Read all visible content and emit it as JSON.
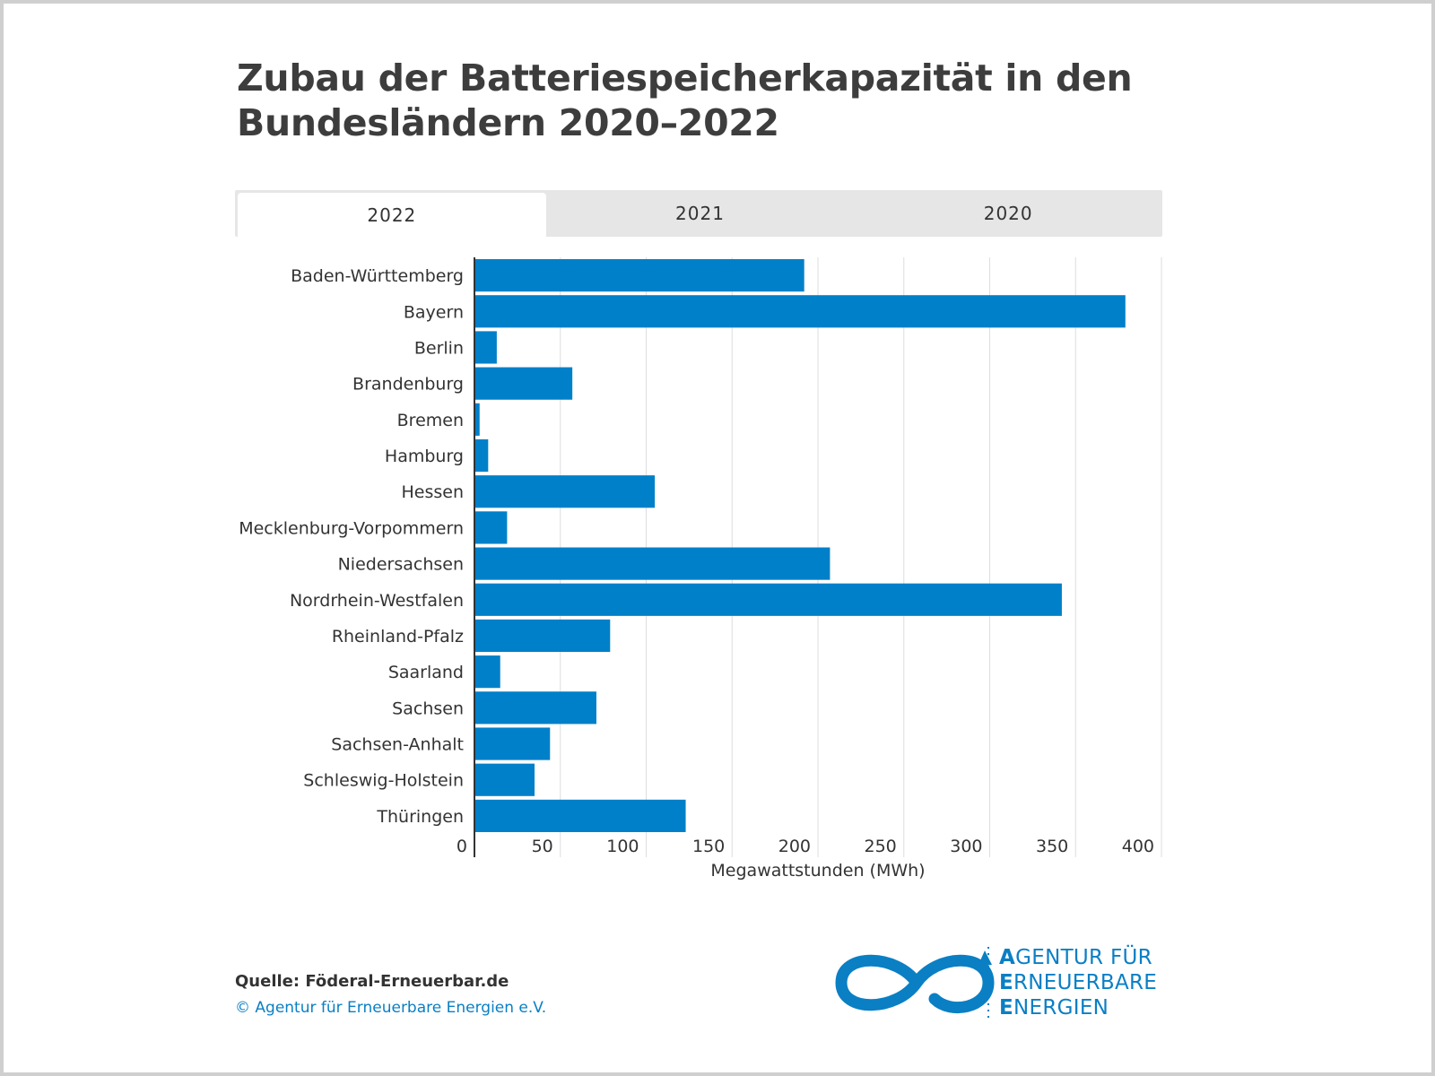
{
  "title_line1": "Zubau der Batteriespeicherkapazität in den",
  "title_line2": "Bundesländern 2020–2022",
  "tabs": [
    {
      "label": "2022",
      "active": true
    },
    {
      "label": "2021",
      "active": false
    },
    {
      "label": "2020",
      "active": false
    }
  ],
  "chart_data": {
    "type": "bar",
    "orientation": "horizontal",
    "categories": [
      "Baden-Württemberg",
      "Bayern",
      "Berlin",
      "Brandenburg",
      "Bremen",
      "Hamburg",
      "Hessen",
      "Mecklenburg-Vorpommern",
      "Niedersachsen",
      "Nordrhein-Westfalen",
      "Rheinland-Pfalz",
      "Saarland",
      "Sachsen",
      "Sachsen-Anhalt",
      "Schleswig-Holstein",
      "Thüringen"
    ],
    "values": [
      192,
      379,
      13,
      57,
      3,
      8,
      105,
      19,
      207,
      342,
      79,
      15,
      71,
      44,
      35,
      123
    ],
    "xlabel": "Megawattstunden (MWh)",
    "xlim": [
      0,
      400
    ],
    "xticks": [
      0,
      50,
      100,
      150,
      200,
      250,
      300,
      350,
      400
    ],
    "bar_color": "#0080c9",
    "grid": true
  },
  "footer": {
    "source": "Quelle: Föderal-Erneuerbar.de",
    "copyright": "© Agentur für Erneuerbare Energien e.V."
  },
  "logo": {
    "line1_initial": "A",
    "line1_rest": "GENTUR FÜR",
    "line2_initial": "E",
    "line2_rest": "RNEUERBARE",
    "line3_initial": "E",
    "line3_rest": "NERGIEN",
    "color": "#0a7fc4"
  }
}
